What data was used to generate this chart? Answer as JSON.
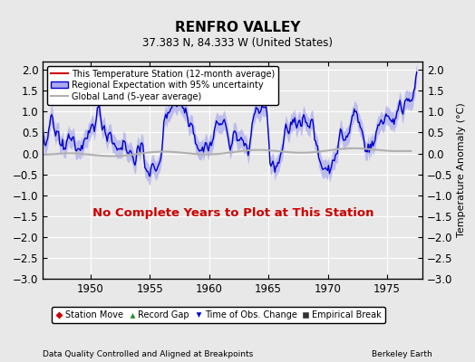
{
  "title": "RENFRO VALLEY",
  "subtitle": "37.383 N, 84.333 W (United States)",
  "ylabel": "Temperature Anomaly (°C)",
  "xlabel_note": "Data Quality Controlled and Aligned at Breakpoints",
  "credit": "Berkeley Earth",
  "no_data_text": "No Complete Years to Plot at This Station",
  "xlim": [
    1946,
    1978
  ],
  "ylim": [
    -3,
    2.2
  ],
  "yticks": [
    -3,
    -2.5,
    -2,
    -1.5,
    -1,
    -0.5,
    0,
    0.5,
    1,
    1.5,
    2
  ],
  "xticks": [
    1950,
    1955,
    1960,
    1965,
    1970,
    1975
  ],
  "bg_color": "#e8e8e8",
  "grid_color": "#ffffff",
  "regional_line_color": "#0000cc",
  "regional_fill_color": "#aaaaee",
  "station_color": "#cc0000",
  "global_color": "#b0b0b0",
  "legend_items": [
    {
      "label": "This Temperature Station (12-month average)",
      "color": "#cc0000",
      "lw": 1.5
    },
    {
      "label": "Regional Expectation with 95% uncertainty",
      "color": "#0000cc",
      "fill": "#aaaaee"
    },
    {
      "label": "Global Land (5-year average)",
      "color": "#b0b0b0",
      "lw": 1.5
    }
  ],
  "marker_legend": [
    {
      "marker": "D",
      "color": "#cc0000",
      "label": "Station Move"
    },
    {
      "marker": "^",
      "color": "#228822",
      "label": "Record Gap"
    },
    {
      "marker": "v",
      "color": "#0000cc",
      "label": "Time of Obs. Change"
    },
    {
      "marker": "s",
      "color": "#333333",
      "label": "Empirical Break"
    }
  ]
}
